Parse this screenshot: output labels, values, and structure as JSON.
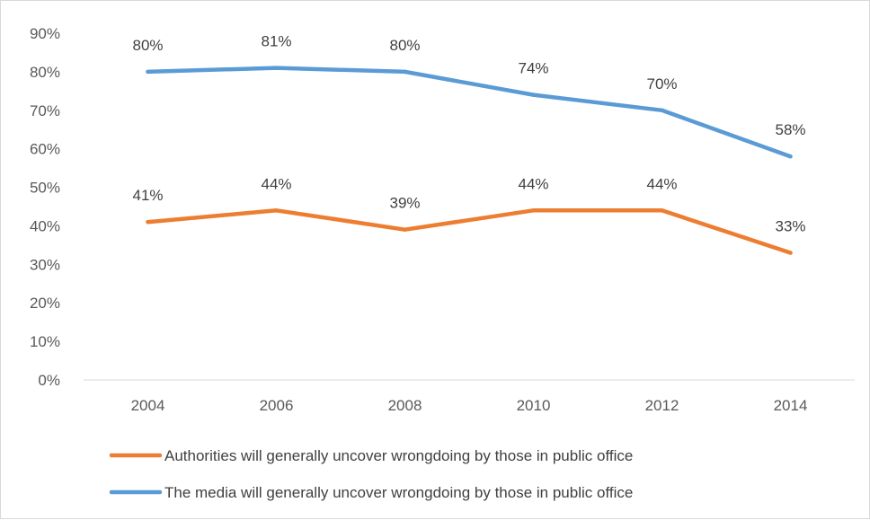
{
  "chart_data": {
    "type": "line",
    "title": "",
    "xlabel": "",
    "ylabel": "",
    "x": [
      "2004",
      "2006",
      "2008",
      "2010",
      "2012",
      "2014"
    ],
    "ylim": [
      0,
      90
    ],
    "y_ticks": [
      "0%",
      "10%",
      "20%",
      "30%",
      "40%",
      "50%",
      "60%",
      "70%",
      "80%",
      "90%"
    ],
    "grid": false,
    "legend_position": "bottom",
    "series": [
      {
        "name": "Authorities will generally uncover wrongdoing by those in public office",
        "color": "#ed7d31",
        "values": [
          41,
          44,
          39,
          44,
          44,
          33
        ],
        "labels": [
          "41%",
          "44%",
          "39%",
          "44%",
          "44%",
          "33%"
        ]
      },
      {
        "name": "The media will generally uncover wrongdoing by those in public office",
        "color": "#5b9bd5",
        "values": [
          80,
          81,
          80,
          74,
          70,
          58
        ],
        "labels": [
          "80%",
          "81%",
          "80%",
          "74%",
          "70%",
          "58%"
        ]
      }
    ]
  }
}
